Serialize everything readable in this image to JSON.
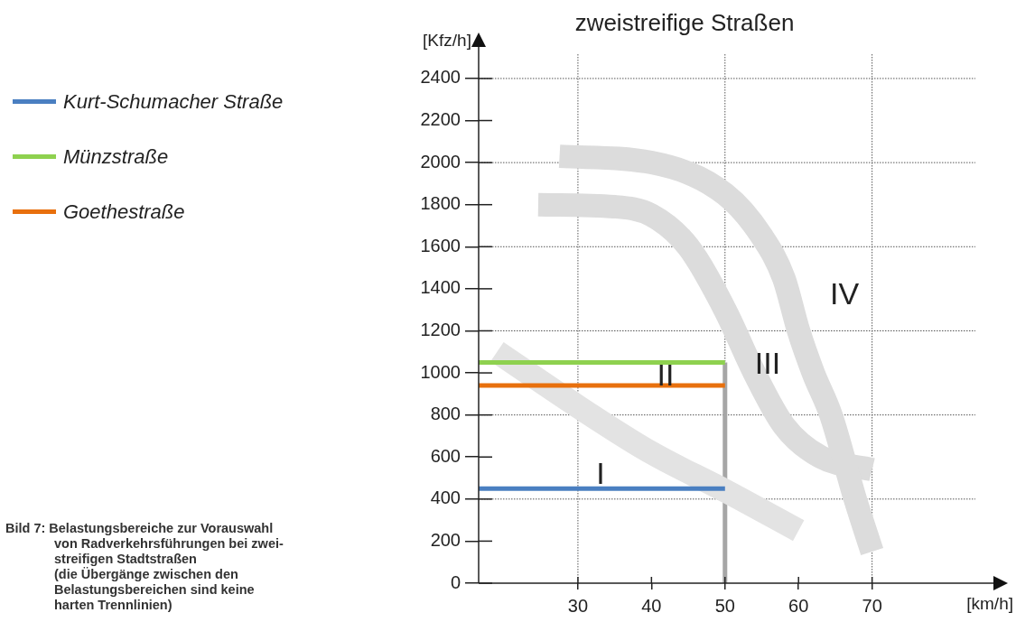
{
  "chart_data": {
    "type": "line",
    "title": "zweistreifige Straßen",
    "xlabel": "[km/h]",
    "ylabel": "[Kfz/h]",
    "xlim": [
      16.5,
      86.5
    ],
    "xticks": [
      30,
      40,
      50,
      60,
      70
    ],
    "ylim": [
      0,
      2550
    ],
    "yticks": [
      0,
      200,
      400,
      600,
      800,
      1000,
      1200,
      1400,
      1600,
      1800,
      2000,
      2200,
      2400
    ],
    "grid": true,
    "legend": "left",
    "marker": "none",
    "line_style": "solid",
    "series": [
      {
        "color": "#dcdcdc",
        "x": [
          27.5,
          40,
          50,
          55,
          58,
          60,
          62,
          64.4,
          67.7,
          70
        ],
        "values": [
          2030,
          2000,
          1850,
          1650,
          1450,
          1200,
          1000,
          800,
          400,
          150
        ]
      },
      {
        "color": "#dcdcdc",
        "x": [
          24.6,
          35,
          40,
          45,
          50,
          54,
          58,
          63,
          70
        ],
        "values": [
          1800,
          1790,
          1750,
          1600,
          1300,
          1000,
          750,
          600,
          540
        ]
      },
      {
        "color": "#e3e3e3",
        "x": [
          19,
          30,
          40,
          50,
          60
        ],
        "values": [
          1100,
          840,
          620,
          440,
          250
        ]
      },
      {
        "color": "#a6a6a6",
        "x": [
          50,
          50
        ],
        "values": [
          0,
          1050
        ]
      },
      {
        "name": "Kurt-Schumacher Straße",
        "color": "#4a7fc1",
        "x": [
          16.5,
          50
        ],
        "values": [
          450,
          450
        ]
      },
      {
        "name": "Münzstraße",
        "color": "#8ed14f",
        "x": [
          16.5,
          50
        ],
        "values": [
          1050,
          1050
        ]
      },
      {
        "name": "Goethestraße",
        "color": "#e8700d",
        "x": [
          16.5,
          50
        ],
        "values": [
          940,
          940
        ]
      }
    ],
    "annotations": [
      "I",
      "II",
      "III",
      "IV",
      "Bild 7: Belastungsbereiche zur Vorauswahl\nvon Radverkehrsführungen bei zwei-\nstreifigen Stadtstraßen\n(die Übergänge zwischen den\nBelastungsbereichen sind keine\nharten Trennlinien)"
    ]
  }
}
